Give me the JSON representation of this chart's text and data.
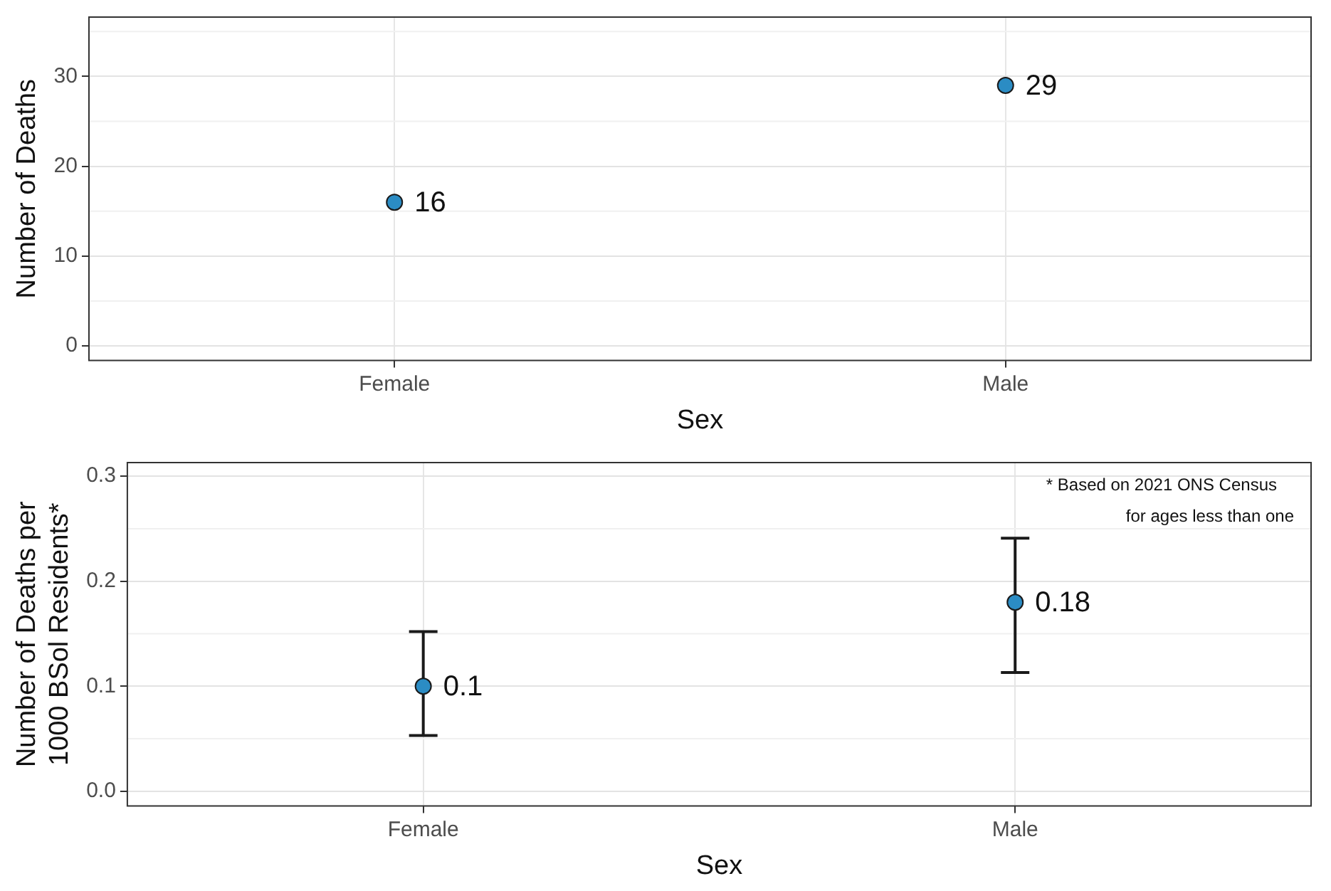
{
  "chart_data": [
    {
      "type": "scatter",
      "xlabel": "Sex",
      "ylabel": "Number of Deaths",
      "categories": [
        "Female",
        "Male"
      ],
      "series": [
        {
          "color": "#2b8cc4",
          "values": [
            16,
            29
          ]
        }
      ],
      "ylim": [
        -1.6,
        36.6
      ],
      "yticks": [
        0,
        10,
        20,
        30
      ],
      "grid": true,
      "legend": false,
      "marker": "circle",
      "data_labels": true
    },
    {
      "type": "scatter",
      "xlabel": "Sex",
      "ylabel": "Number of Deaths per 1000 BSol Residents*",
      "categories": [
        "Female",
        "Male"
      ],
      "series": [
        {
          "color": "#2b8cc4",
          "values": [
            0.1,
            0.18
          ],
          "errors": [
            [
              0.053,
              0.152
            ],
            [
              0.113,
              0.241
            ]
          ]
        }
      ],
      "ylim": [
        -0.014,
        0.313
      ],
      "yticks": [
        {
          "value": 0,
          "label": "0.0"
        },
        0.1,
        0.2,
        0.3
      ],
      "grid": true,
      "legend": false,
      "marker": "circle",
      "data_labels": true,
      "annotations": [
        "* Based on 2021 ONS Census",
        "for ages less than one"
      ]
    }
  ]
}
